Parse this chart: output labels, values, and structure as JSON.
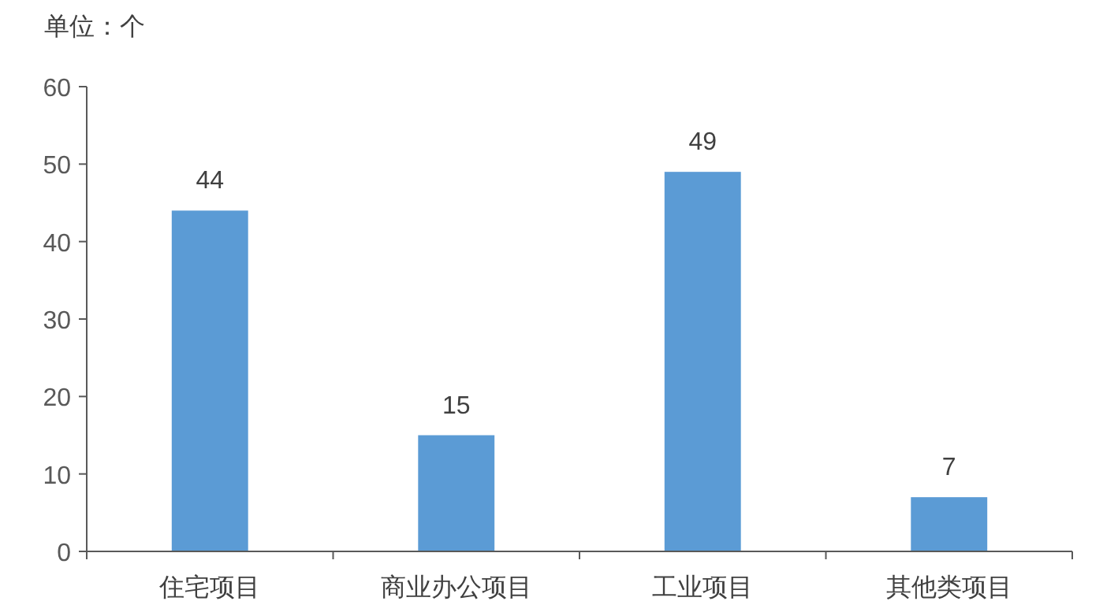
{
  "chart_data": {
    "type": "bar",
    "ylabel": "单位：个",
    "categories": [
      "住宅项目",
      "商业办公项目",
      "工业项目",
      "其他类项目"
    ],
    "values": [
      44,
      15,
      49,
      7
    ],
    "color": "#5b9bd5",
    "ylim": [
      0,
      60
    ],
    "yticks": [
      0,
      10,
      20,
      30,
      40,
      50,
      60
    ],
    "grid": false,
    "data_labels": true
  }
}
